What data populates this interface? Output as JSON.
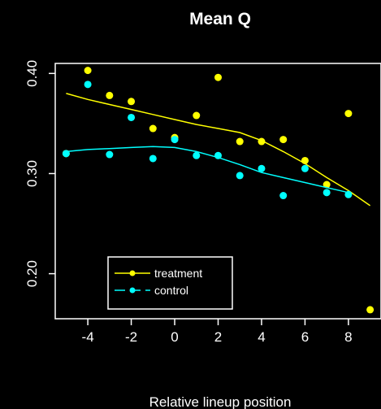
{
  "chart_data": {
    "type": "scatter",
    "title": "Mean Q",
    "xlabel": "Relative lineup position",
    "ylabel": "",
    "xlim": [
      -5.5,
      9.5
    ],
    "ylim": [
      0.155,
      0.41
    ],
    "xticks": [
      -4,
      -2,
      0,
      2,
      4,
      6,
      8
    ],
    "xtick_labels": [
      "-4",
      "-2",
      "0",
      "2",
      "4",
      "6",
      "8"
    ],
    "yticks": [
      0.2,
      0.3,
      0.4
    ],
    "ytick_labels": [
      "0.20",
      "0.30",
      "0.40"
    ],
    "grid": false,
    "legend_position": "bottom-left",
    "series": [
      {
        "name": "treatment",
        "color": "#ffff00",
        "points": {
          "x": [
            -5,
            -4,
            -3,
            -2,
            -1,
            0,
            1,
            2,
            3,
            4,
            5,
            6,
            7,
            8,
            9
          ],
          "y": [
            0.32,
            0.403,
            0.378,
            0.372,
            0.345,
            0.336,
            0.358,
            0.396,
            0.332,
            0.332,
            0.334,
            0.313,
            0.289,
            0.36,
            0.164
          ]
        },
        "smooth": {
          "x": [
            -5,
            -4,
            -3,
            -2,
            -1,
            0,
            1,
            2,
            3,
            4,
            5,
            6,
            7,
            8,
            9
          ],
          "y": [
            0.38,
            0.374,
            0.369,
            0.364,
            0.359,
            0.354,
            0.349,
            0.345,
            0.341,
            0.333,
            0.322,
            0.31,
            0.296,
            0.283,
            0.268
          ]
        }
      },
      {
        "name": "control",
        "color": "#00ffff",
        "points": {
          "x": [
            -5,
            -4,
            -3,
            -2,
            -1,
            0,
            1,
            2,
            3,
            4,
            5,
            6,
            7,
            8
          ],
          "y": [
            0.32,
            0.389,
            0.319,
            0.356,
            0.315,
            0.334,
            0.318,
            0.318,
            0.298,
            0.305,
            0.278,
            0.305,
            0.281,
            0.279
          ]
        },
        "smooth": {
          "x": [
            -5,
            -4,
            -3,
            -2,
            -1,
            0,
            1,
            2,
            3,
            4,
            5,
            6,
            7,
            8
          ],
          "y": [
            0.322,
            0.324,
            0.325,
            0.326,
            0.327,
            0.326,
            0.322,
            0.316,
            0.309,
            0.301,
            0.296,
            0.291,
            0.286,
            0.281
          ]
        }
      }
    ]
  }
}
